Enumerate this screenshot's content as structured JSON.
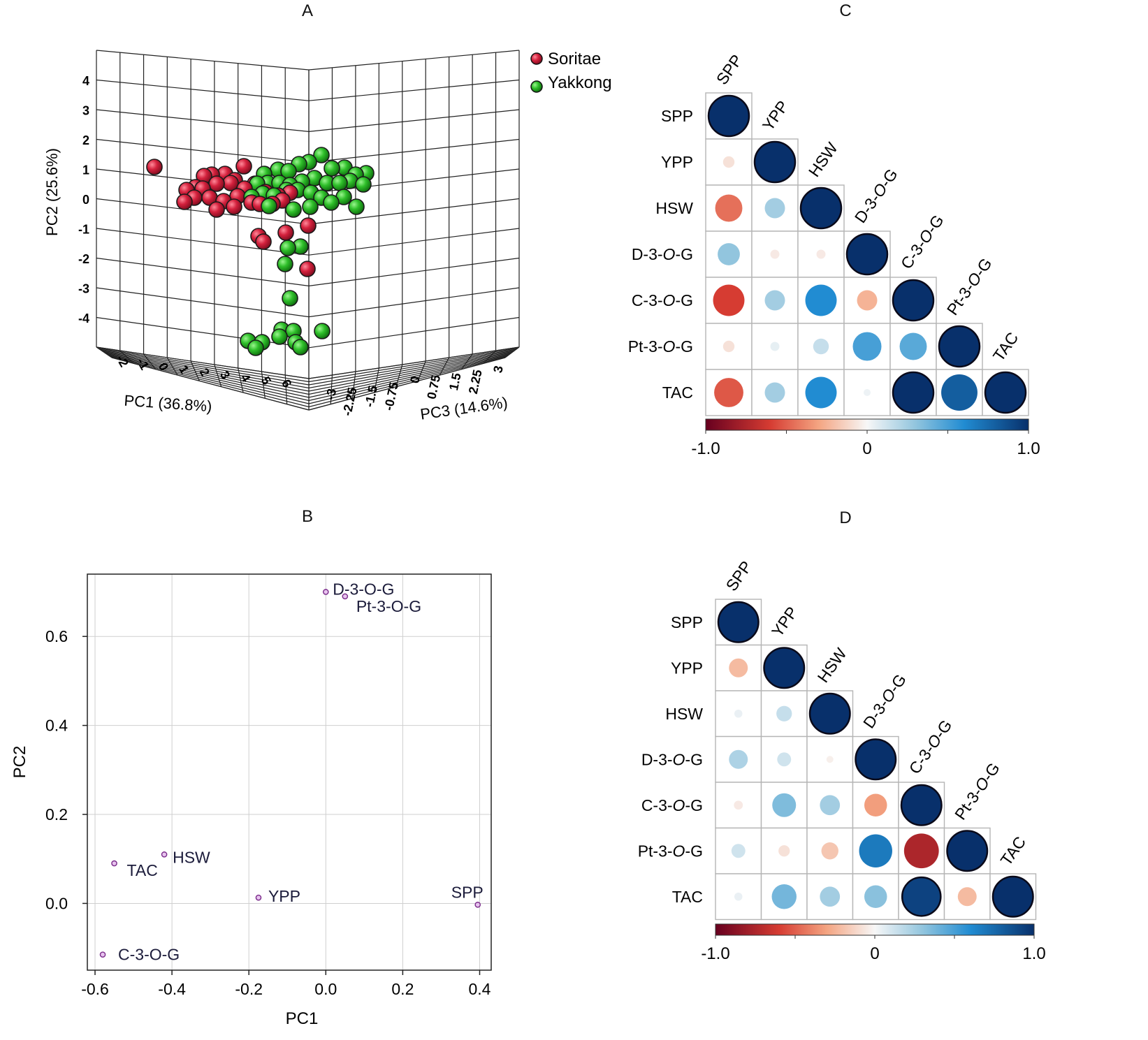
{
  "panels": {
    "a": {
      "title": "A"
    },
    "b": {
      "title": "B"
    },
    "c": {
      "title": "C"
    },
    "d": {
      "title": "D"
    }
  },
  "chart_data": [
    {
      "id": "A",
      "type": "scatter3d",
      "title": "A",
      "xlabel": "PC1 (36.8%)",
      "ylabel": "PC2 (25.6%)",
      "zlabel": "PC3 (14.6%)",
      "xticks": [
        "-2",
        "-1",
        "0",
        "1",
        "2",
        "3",
        "4",
        "5",
        "6"
      ],
      "yticks": [
        "4",
        "3",
        "2",
        "1",
        "0",
        "-1",
        "-2",
        "-3",
        "-4"
      ],
      "zticks": [
        "-3",
        "-2.25",
        "-1.5",
        "-0.75",
        "0",
        "0.75",
        "1.5",
        "2.25",
        "3"
      ],
      "legend": [
        {
          "name": "Soritae",
          "color": "#d4213d"
        },
        {
          "name": "Yakkong",
          "color": "#2fbf2a"
        }
      ],
      "series": [
        {
          "name": "Soritae",
          "approx_count": 35
        },
        {
          "name": "Yakkong",
          "approx_count": 45
        }
      ]
    },
    {
      "id": "B",
      "type": "scatter",
      "title": "B",
      "xlabel": "PC1",
      "ylabel": "PC2",
      "xlim": [
        -0.62,
        0.43
      ],
      "ylim": [
        -0.15,
        0.74
      ],
      "xticks": [
        -0.6,
        -0.4,
        -0.2,
        0.0,
        0.2,
        0.4
      ],
      "xticklabels": [
        "-0.6",
        "-0.4",
        "-0.2",
        "0.0",
        "0.2",
        "0.4"
      ],
      "yticks": [
        0.0,
        0.2,
        0.4,
        0.6
      ],
      "yticklabels": [
        "0.0",
        "0.2",
        "0.4",
        "0.6"
      ],
      "points": [
        {
          "label": "D-3-O-G",
          "x": 0.0,
          "y": 0.7
        },
        {
          "label": "Pt-3-O-G",
          "x": 0.05,
          "y": 0.69
        },
        {
          "label": "HSW",
          "x": -0.42,
          "y": 0.11
        },
        {
          "label": "TAC",
          "x": -0.55,
          "y": 0.09
        },
        {
          "label": "YPP",
          "x": -0.175,
          "y": 0.013
        },
        {
          "label": "SPP",
          "x": 0.395,
          "y": -0.003
        },
        {
          "label": "C-3-O-G",
          "x": -0.58,
          "y": -0.115
        }
      ]
    },
    {
      "id": "C",
      "type": "heatmap",
      "title": "C",
      "variables": [
        "SPP",
        "YPP",
        "HSW",
        "D-3-O-G",
        "C-3-O-G",
        "Pt-3-O-G",
        "TAC"
      ],
      "colorbar": {
        "min": -1.0,
        "max": 1.0,
        "labels": [
          "-1.0",
          "0",
          "1.0"
        ]
      },
      "matrix": [
        [
          1.0
        ],
        [
          -0.08,
          1.0
        ],
        [
          -0.45,
          0.25,
          1.0
        ],
        [
          0.3,
          -0.05,
          -0.05,
          1.0
        ],
        [
          -0.6,
          0.25,
          0.6,
          -0.25,
          1.0
        ],
        [
          -0.08,
          0.05,
          0.15,
          0.5,
          0.45,
          1.0
        ],
        [
          -0.52,
          0.25,
          0.6,
          0.03,
          1.0,
          0.8,
          1.0
        ]
      ]
    },
    {
      "id": "D",
      "type": "heatmap",
      "title": "D",
      "variables": [
        "SPP",
        "YPP",
        "HSW",
        "D-3-O-G",
        "C-3-O-G",
        "Pt-3-O-G",
        "TAC"
      ],
      "colorbar": {
        "min": -1.0,
        "max": 1.0,
        "labels": [
          "-1.0",
          "0",
          "1.0"
        ]
      },
      "matrix": [
        [
          1.0
        ],
        [
          -0.22,
          1.0
        ],
        [
          0.04,
          0.15,
          1.0
        ],
        [
          0.22,
          0.12,
          -0.03,
          1.0
        ],
        [
          -0.05,
          0.35,
          0.25,
          -0.32,
          1.0
        ],
        [
          0.12,
          -0.08,
          -0.18,
          0.68,
          -0.75,
          1.0
        ],
        [
          0.04,
          0.38,
          0.25,
          0.32,
          0.92,
          -0.22,
          1.0
        ]
      ]
    }
  ]
}
